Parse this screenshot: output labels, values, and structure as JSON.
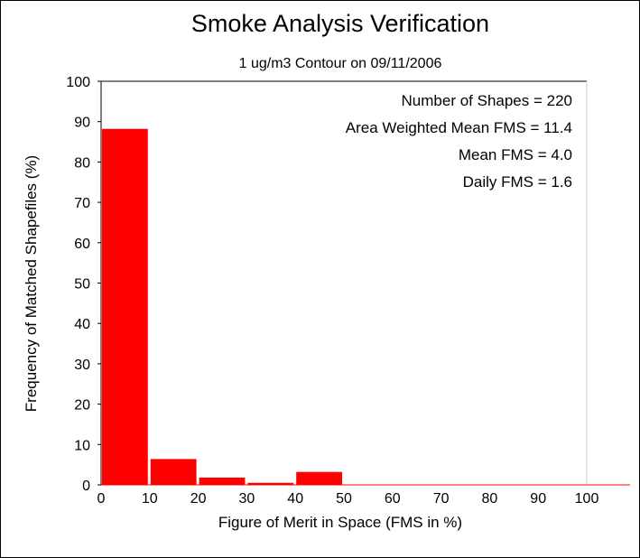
{
  "chart_data": {
    "type": "bar",
    "title": "Smoke Analysis Verification",
    "subtitle": "1 ug/m3 Contour on 09/11/2006",
    "xlabel": "Figure of Merit in Space (FMS in %)",
    "ylabel": "Frequency of Matched Shapefiles (%)",
    "xlim": [
      0,
      110
    ],
    "ylim": [
      0,
      100
    ],
    "xticks": [
      "0",
      "10",
      "20",
      "30",
      "40",
      "50",
      "60",
      "70",
      "80",
      "90",
      "100"
    ],
    "yticks": [
      "0",
      "10",
      "20",
      "30",
      "40",
      "50",
      "60",
      "70",
      "80",
      "90",
      "100"
    ],
    "bin_width": 10,
    "bins": [
      0,
      10,
      20,
      30,
      40,
      50,
      60,
      70,
      80,
      90,
      100
    ],
    "values": [
      88.2,
      6.4,
      1.8,
      0.5,
      3.2,
      0,
      0,
      0,
      0,
      0,
      0
    ],
    "bar_color": "#ff0000",
    "grid": false,
    "stats": [
      "Number of Shapes = 220",
      "Area Weighted Mean FMS = 11.4",
      "Mean FMS = 4.0",
      "Daily FMS = 1.6"
    ],
    "stats_placement": "top-right"
  }
}
